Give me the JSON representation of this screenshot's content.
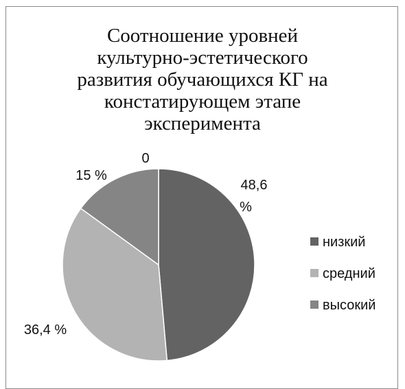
{
  "chart_data": {
    "type": "pie",
    "title_lines": [
      "Соотношение уровней",
      "культурно-эстетического",
      "развития обучающихся КГ на",
      "констатирующем этапе",
      "эксперимента"
    ],
    "categories": [
      "низкий",
      "средний",
      "высокий",
      "0"
    ],
    "values": [
      48.6,
      36.4,
      15,
      0
    ],
    "data_labels": [
      [
        "48,6",
        "%"
      ],
      [
        "36,4 %"
      ],
      [
        "15 %"
      ],
      [
        "0"
      ]
    ],
    "colors": [
      "#636363",
      "#b3b3b3",
      "#858585",
      "#d0d0d0"
    ],
    "start_angle_deg": 0,
    "direction": "clockwise",
    "legend": {
      "position": "right",
      "items": [
        "низкий",
        "средний",
        "высокий"
      ]
    }
  }
}
